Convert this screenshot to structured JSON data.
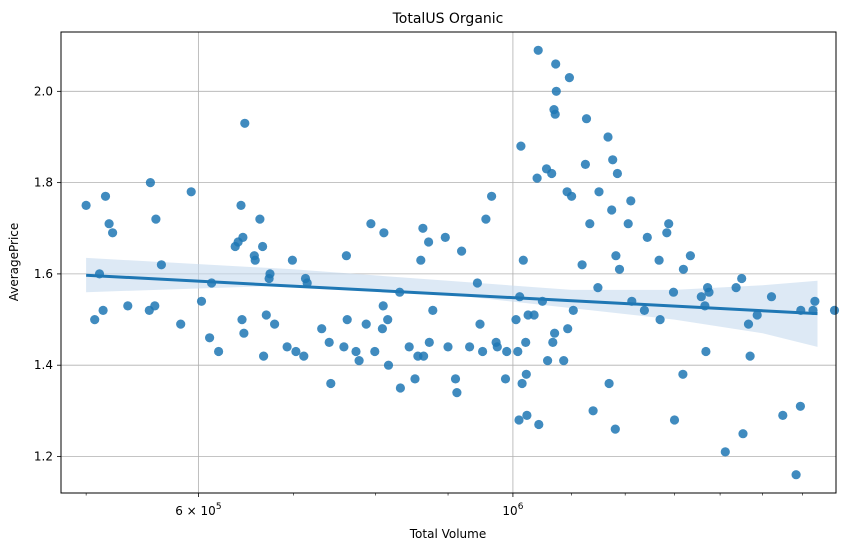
{
  "chart_data": {
    "type": "scatter",
    "title": "TotalUS Organic",
    "xlabel": "Total Volume",
    "ylabel": "AveragePrice",
    "xscale": "log",
    "xlim": [
      480000,
      1690000
    ],
    "ylim": [
      1.12,
      2.13
    ],
    "grid": true,
    "x_tick_labels": [
      {
        "value": 600000,
        "base": "6 × 10",
        "exp": "5"
      },
      {
        "value": 1000000,
        "base": "10",
        "exp": "6"
      }
    ],
    "y_ticks": [
      1.2,
      1.4,
      1.6,
      1.8,
      2.0
    ],
    "y_tick_labels": [
      "1.2",
      "1.4",
      "1.6",
      "1.8",
      "2.0"
    ],
    "colors": {
      "points": "#1f77b4",
      "ci_band": "#c6dbef",
      "grid": "#b0b0b0"
    },
    "regression": {
      "x": [
        500000,
        1640000
      ],
      "y": [
        1.597,
        1.513
      ]
    },
    "confidence_band": {
      "x": [
        500000,
        700000,
        900000,
        1100000,
        1300000,
        1500000,
        1640000
      ],
      "lower": [
        1.56,
        1.575,
        1.555,
        1.525,
        1.5,
        1.47,
        1.44
      ],
      "upper": [
        1.635,
        1.61,
        1.585,
        1.565,
        1.565,
        1.575,
        1.585
      ]
    },
    "points": [
      [
        500000,
        1.75
      ],
      [
        507000,
        1.5
      ],
      [
        511000,
        1.6
      ],
      [
        514000,
        1.52
      ],
      [
        516000,
        1.77
      ],
      [
        519000,
        1.71
      ],
      [
        522000,
        1.69
      ],
      [
        535000,
        1.53
      ],
      [
        554000,
        1.52
      ],
      [
        555000,
        1.8
      ],
      [
        559000,
        1.53
      ],
      [
        560000,
        1.72
      ],
      [
        565000,
        1.62
      ],
      [
        583000,
        1.49
      ],
      [
        593000,
        1.78
      ],
      [
        603000,
        1.54
      ],
      [
        611000,
        1.46
      ],
      [
        613000,
        1.58
      ],
      [
        620000,
        1.43
      ],
      [
        637000,
        1.66
      ],
      [
        640000,
        1.67
      ],
      [
        643000,
        1.75
      ],
      [
        644000,
        1.5
      ],
      [
        645000,
        1.68
      ],
      [
        646000,
        1.47
      ],
      [
        647000,
        1.93
      ],
      [
        657000,
        1.64
      ],
      [
        658000,
        1.63
      ],
      [
        663000,
        1.72
      ],
      [
        666000,
        1.66
      ],
      [
        667000,
        1.42
      ],
      [
        670000,
        1.51
      ],
      [
        673000,
        1.59
      ],
      [
        674000,
        1.6
      ],
      [
        679000,
        1.49
      ],
      [
        693000,
        1.44
      ],
      [
        699000,
        1.63
      ],
      [
        703000,
        1.43
      ],
      [
        712000,
        1.42
      ],
      [
        714000,
        1.59
      ],
      [
        716000,
        1.58
      ],
      [
        733000,
        1.48
      ],
      [
        742000,
        1.45
      ],
      [
        744000,
        1.36
      ],
      [
        760000,
        1.44
      ],
      [
        763000,
        1.64
      ],
      [
        764000,
        1.5
      ],
      [
        775000,
        1.43
      ],
      [
        779000,
        1.41
      ],
      [
        788000,
        1.49
      ],
      [
        794000,
        1.71
      ],
      [
        799000,
        1.43
      ],
      [
        809000,
        1.48
      ],
      [
        810000,
        1.53
      ],
      [
        811000,
        1.69
      ],
      [
        816000,
        1.5
      ],
      [
        817000,
        1.4
      ],
      [
        832000,
        1.56
      ],
      [
        833000,
        1.35
      ],
      [
        845000,
        1.44
      ],
      [
        853000,
        1.37
      ],
      [
        857000,
        1.42
      ],
      [
        861000,
        1.63
      ],
      [
        864000,
        1.7
      ],
      [
        865000,
        1.42
      ],
      [
        872000,
        1.67
      ],
      [
        873000,
        1.45
      ],
      [
        878000,
        1.52
      ],
      [
        896000,
        1.68
      ],
      [
        900000,
        1.44
      ],
      [
        911000,
        1.37
      ],
      [
        913000,
        1.34
      ],
      [
        920000,
        1.65
      ],
      [
        932000,
        1.44
      ],
      [
        944000,
        1.58
      ],
      [
        948000,
        1.49
      ],
      [
        952000,
        1.43
      ],
      [
        957000,
        1.72
      ],
      [
        966000,
        1.77
      ],
      [
        973000,
        1.45
      ],
      [
        975000,
        1.44
      ],
      [
        988000,
        1.37
      ],
      [
        990000,
        1.43
      ],
      [
        1005000,
        1.5
      ],
      [
        1008000,
        1.43
      ],
      [
        1010000,
        1.28
      ],
      [
        1011000,
        1.55
      ],
      [
        1013000,
        1.88
      ],
      [
        1015000,
        1.36
      ],
      [
        1017000,
        1.63
      ],
      [
        1021000,
        1.45
      ],
      [
        1022000,
        1.38
      ],
      [
        1023000,
        1.29
      ],
      [
        1025000,
        1.51
      ],
      [
        1035000,
        1.51
      ],
      [
        1040000,
        1.81
      ],
      [
        1042000,
        2.09
      ],
      [
        1043000,
        1.27
      ],
      [
        1049000,
        1.54
      ],
      [
        1056000,
        1.83
      ],
      [
        1058000,
        1.41
      ],
      [
        1065000,
        1.82
      ],
      [
        1067000,
        1.45
      ],
      [
        1069000,
        1.96
      ],
      [
        1070000,
        1.47
      ],
      [
        1071000,
        1.95
      ],
      [
        1072000,
        2.06
      ],
      [
        1073000,
        2.0
      ],
      [
        1086000,
        1.41
      ],
      [
        1092000,
        1.78
      ],
      [
        1093000,
        1.48
      ],
      [
        1096000,
        2.03
      ],
      [
        1100000,
        1.77
      ],
      [
        1103000,
        1.52
      ],
      [
        1119000,
        1.62
      ],
      [
        1125000,
        1.84
      ],
      [
        1127000,
        1.94
      ],
      [
        1133000,
        1.71
      ],
      [
        1139000,
        1.3
      ],
      [
        1148000,
        1.57
      ],
      [
        1150000,
        1.78
      ],
      [
        1167000,
        1.9
      ],
      [
        1169000,
        1.36
      ],
      [
        1174000,
        1.74
      ],
      [
        1176000,
        1.85
      ],
      [
        1181000,
        1.26
      ],
      [
        1182000,
        1.64
      ],
      [
        1185000,
        1.82
      ],
      [
        1189000,
        1.61
      ],
      [
        1206000,
        1.71
      ],
      [
        1211000,
        1.76
      ],
      [
        1213000,
        1.54
      ],
      [
        1238000,
        1.52
      ],
      [
        1244000,
        1.68
      ],
      [
        1268000,
        1.63
      ],
      [
        1270000,
        1.5
      ],
      [
        1284000,
        1.69
      ],
      [
        1288000,
        1.71
      ],
      [
        1298000,
        1.56
      ],
      [
        1300000,
        1.28
      ],
      [
        1318000,
        1.38
      ],
      [
        1319000,
        1.61
      ],
      [
        1334000,
        1.64
      ],
      [
        1358000,
        1.55
      ],
      [
        1366000,
        1.53
      ],
      [
        1368000,
        1.43
      ],
      [
        1372000,
        1.57
      ],
      [
        1375000,
        1.56
      ],
      [
        1412000,
        1.21
      ],
      [
        1437000,
        1.57
      ],
      [
        1450000,
        1.59
      ],
      [
        1453000,
        1.25
      ],
      [
        1466000,
        1.49
      ],
      [
        1470000,
        1.42
      ],
      [
        1487000,
        1.51
      ],
      [
        1522000,
        1.55
      ],
      [
        1550000,
        1.29
      ],
      [
        1584000,
        1.16
      ],
      [
        1595000,
        1.31
      ],
      [
        1596000,
        1.52
      ],
      [
        1628000,
        1.52
      ],
      [
        1633000,
        1.54
      ],
      [
        1686000,
        1.52
      ]
    ]
  }
}
